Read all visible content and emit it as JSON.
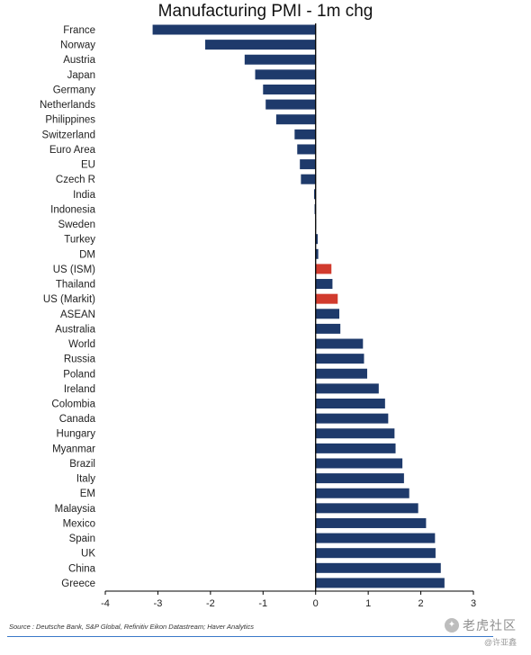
{
  "chart_data": {
    "type": "bar",
    "orientation": "horizontal",
    "title": "Manufacturing PMI - 1m chg",
    "source": "Source : Deutsche Bank, S&P Global, Refinitiv Eikon Datastream; Haver Analytics",
    "xlim": [
      -4,
      3
    ],
    "xticks": [
      "-4",
      "-3",
      "-2",
      "-1",
      "0",
      "1",
      "2",
      "3"
    ],
    "categories": [
      "France",
      "Norway",
      "Austria",
      "Japan",
      "Germany",
      "Netherlands",
      "Philippines",
      "Switzerland",
      "Euro Area",
      "EU",
      "Czech R",
      "India",
      "Indonesia",
      "Sweden",
      "Turkey",
      "DM",
      "US (ISM)",
      "Thailand",
      "US (Markit)",
      "ASEAN",
      "Australia",
      "World",
      "Russia",
      "Poland",
      "Ireland",
      "Colombia",
      "Canada",
      "Hungary",
      "Myanmar",
      "Brazil",
      "Italy",
      "EM",
      "Malaysia",
      "Mexico",
      "Spain",
      "UK",
      "China",
      "Greece"
    ],
    "values": [
      -3.1,
      -2.1,
      -1.35,
      -1.15,
      -1.0,
      -0.95,
      -0.75,
      -0.4,
      -0.35,
      -0.3,
      -0.28,
      -0.03,
      -0.02,
      0.0,
      0.04,
      0.05,
      0.3,
      0.32,
      0.42,
      0.45,
      0.47,
      0.9,
      0.92,
      0.98,
      1.2,
      1.32,
      1.38,
      1.5,
      1.52,
      1.65,
      1.68,
      1.78,
      1.95,
      2.1,
      2.27,
      2.28,
      2.38,
      2.45
    ],
    "highlight": [
      "US (ISM)",
      "US (Markit)"
    ],
    "colors": {
      "bar": "#1e3a6b",
      "highlight": "#d13b2e",
      "axis": "#000000"
    },
    "grid": false,
    "legend": "none"
  },
  "watermark": {
    "icon": "tiger-icon",
    "name": "老虎社区",
    "handle": "@许亚鑫"
  }
}
